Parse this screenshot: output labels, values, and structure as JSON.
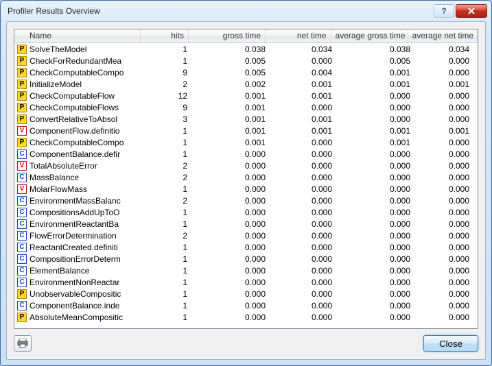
{
  "window": {
    "title": "Profiler Results Overview",
    "close_button_label": "Close"
  },
  "colors": {
    "window_border": "#3b6ea5",
    "grid_border": "#828790",
    "header_divider": "#d5dae1",
    "icon_P_bg": "#ffd732",
    "icon_C_fg": "#1946c0",
    "icon_V_fg": "#c01919"
  },
  "columns": [
    {
      "key": "name",
      "label": "Name",
      "align": "left"
    },
    {
      "key": "hits",
      "label": "hits",
      "align": "right"
    },
    {
      "key": "gt",
      "label": "gross time",
      "align": "right"
    },
    {
      "key": "nt",
      "label": "net time",
      "align": "right"
    },
    {
      "key": "agt",
      "label": "average gross time",
      "align": "right"
    },
    {
      "key": "ant",
      "label": "average net time",
      "align": "right"
    }
  ],
  "rows": [
    {
      "icon": "P",
      "name": "SolveTheModel",
      "hits": 1,
      "gt": "0.038",
      "nt": "0.034",
      "agt": "0.038",
      "ant": "0.034"
    },
    {
      "icon": "P",
      "name": "CheckForRedundantMea",
      "hits": 1,
      "gt": "0.005",
      "nt": "0.000",
      "agt": "0.005",
      "ant": "0.000"
    },
    {
      "icon": "P",
      "name": "CheckComputableCompo",
      "hits": 9,
      "gt": "0.005",
      "nt": "0.004",
      "agt": "0.001",
      "ant": "0.000"
    },
    {
      "icon": "P",
      "name": "InitializeModel",
      "hits": 2,
      "gt": "0.002",
      "nt": "0.001",
      "agt": "0.001",
      "ant": "0.001"
    },
    {
      "icon": "P",
      "name": "CheckComputableFlow",
      "hits": 12,
      "gt": "0.001",
      "nt": "0.001",
      "agt": "0.000",
      "ant": "0.000"
    },
    {
      "icon": "P",
      "name": "CheckComputableFlows",
      "hits": 9,
      "gt": "0.001",
      "nt": "0.000",
      "agt": "0.000",
      "ant": "0.000"
    },
    {
      "icon": "P",
      "name": "ConvertRelativeToAbsol",
      "hits": 3,
      "gt": "0.001",
      "nt": "0.001",
      "agt": "0.000",
      "ant": "0.000"
    },
    {
      "icon": "V",
      "name": "ComponentFlow.definitio",
      "hits": 1,
      "gt": "0.001",
      "nt": "0.001",
      "agt": "0.001",
      "ant": "0.001"
    },
    {
      "icon": "P",
      "name": "CheckComputableCompo",
      "hits": 1,
      "gt": "0.001",
      "nt": "0.000",
      "agt": "0.001",
      "ant": "0.000"
    },
    {
      "icon": "C",
      "name": "ComponentBalance.defir",
      "hits": 1,
      "gt": "0.000",
      "nt": "0.000",
      "agt": "0.000",
      "ant": "0.000"
    },
    {
      "icon": "V",
      "name": "TotalAbsoluteError",
      "hits": 2,
      "gt": "0.000",
      "nt": "0.000",
      "agt": "0.000",
      "ant": "0.000"
    },
    {
      "icon": "C",
      "name": "MassBalance",
      "hits": 2,
      "gt": "0.000",
      "nt": "0.000",
      "agt": "0.000",
      "ant": "0.000"
    },
    {
      "icon": "V",
      "name": "MolarFlowMass",
      "hits": 1,
      "gt": "0.000",
      "nt": "0.000",
      "agt": "0.000",
      "ant": "0.000"
    },
    {
      "icon": "C",
      "name": "EnvironmentMassBalanc",
      "hits": 2,
      "gt": "0.000",
      "nt": "0.000",
      "agt": "0.000",
      "ant": "0.000"
    },
    {
      "icon": "C",
      "name": "CompositionsAddUpToO",
      "hits": 1,
      "gt": "0.000",
      "nt": "0.000",
      "agt": "0.000",
      "ant": "0.000"
    },
    {
      "icon": "C",
      "name": "EnvironmentReactantBa",
      "hits": 1,
      "gt": "0.000",
      "nt": "0.000",
      "agt": "0.000",
      "ant": "0.000"
    },
    {
      "icon": "C",
      "name": "FlowErrorDetermination",
      "hits": 2,
      "gt": "0.000",
      "nt": "0.000",
      "agt": "0.000",
      "ant": "0.000"
    },
    {
      "icon": "C",
      "name": "ReactantCreated.definiti",
      "hits": 1,
      "gt": "0.000",
      "nt": "0.000",
      "agt": "0.000",
      "ant": "0.000"
    },
    {
      "icon": "C",
      "name": "CompositionErrorDeterm",
      "hits": 1,
      "gt": "0.000",
      "nt": "0.000",
      "agt": "0.000",
      "ant": "0.000"
    },
    {
      "icon": "C",
      "name": "ElementBalance",
      "hits": 1,
      "gt": "0.000",
      "nt": "0.000",
      "agt": "0.000",
      "ant": "0.000"
    },
    {
      "icon": "C",
      "name": "EnvironmentNonReactar",
      "hits": 1,
      "gt": "0.000",
      "nt": "0.000",
      "agt": "0.000",
      "ant": "0.000"
    },
    {
      "icon": "P",
      "name": "UnobservableCompositic",
      "hits": 1,
      "gt": "0.000",
      "nt": "0.000",
      "agt": "0.000",
      "ant": "0.000"
    },
    {
      "icon": "C",
      "name": "ComponentBalance.inde",
      "hits": 1,
      "gt": "0.000",
      "nt": "0.000",
      "agt": "0.000",
      "ant": "0.000"
    },
    {
      "icon": "P",
      "name": "AbsoluteMeanCompositic",
      "hits": 1,
      "gt": "0.000",
      "nt": "0.000",
      "agt": "0.000",
      "ant": "0.000"
    }
  ]
}
